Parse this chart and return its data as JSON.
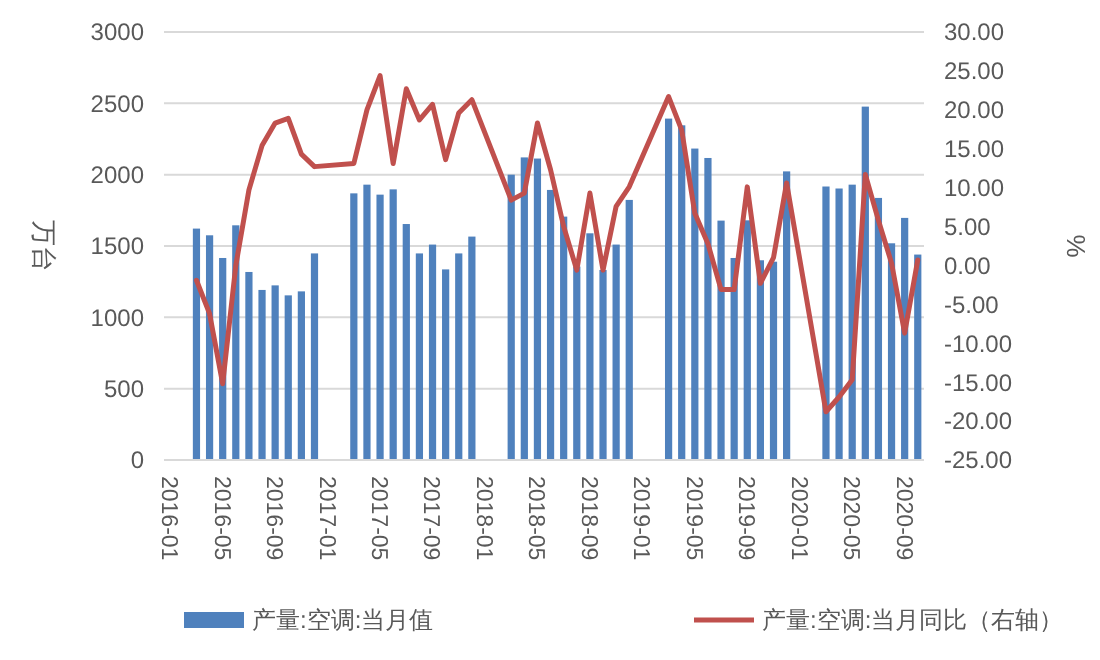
{
  "chart_data": {
    "type": "bar",
    "ylabel": "万台",
    "y2label": "%",
    "categories": [
      "2016-01",
      null,
      null,
      null,
      "2016-05",
      null,
      null,
      null,
      "2016-09",
      null,
      null,
      null,
      "2017-01",
      null,
      null,
      null,
      "2017-05",
      null,
      null,
      null,
      "2017-09",
      null,
      null,
      null,
      "2018-01",
      null,
      null,
      null,
      "2018-05",
      null,
      null,
      null,
      "2018-09",
      null,
      null,
      null,
      "2019-01",
      null,
      null,
      null,
      "2019-05",
      null,
      null,
      null,
      "2019-09",
      null,
      null,
      null,
      "2020-01",
      null,
      null,
      null,
      "2020-05",
      null,
      null,
      null,
      "2020-09",
      null
    ],
    "series": [
      {
        "name": "产量:空调:当月值",
        "color": "#4f81bd",
        "values": [
          null,
          null,
          1622,
          1575,
          1416,
          1645,
          1318,
          1192,
          1224,
          1154,
          1182,
          1448,
          null,
          null,
          1869,
          1930,
          1860,
          1897,
          1654,
          1448,
          1510,
          1336,
          1448,
          1566,
          null,
          null,
          2000,
          2121,
          2113,
          1893,
          1706,
          1356,
          1589,
          1332,
          1510,
          1823,
          null,
          null,
          2393,
          2346,
          2183,
          2117,
          1678,
          1416,
          1680,
          1400,
          1390,
          2023,
          null,
          null,
          1917,
          1903,
          1930,
          2477,
          1837,
          1519,
          1697,
          1440
        ]
      },
      {
        "name": "产量:空调:当月同比（右轴）",
        "type": "line",
        "axis": "y2",
        "color": "#c0504d",
        "values": [
          null,
          null,
          -1.9,
          -6.2,
          -15.2,
          0,
          9.7,
          15.4,
          18.3,
          18.9,
          14.3,
          12.7,
          null,
          null,
          13.1,
          20,
          24.4,
          13.1,
          22.7,
          18.7,
          20.7,
          13.6,
          19.6,
          21.3,
          null,
          null,
          8.4,
          9.3,
          18.3,
          12.3,
          5,
          -0.6,
          9.3,
          -0.6,
          7.6,
          10.1,
          null,
          null,
          21.7,
          17.4,
          6.7,
          2.8,
          -3.1,
          -3.1,
          10.1,
          -2.3,
          1,
          10.6,
          null,
          null,
          -18.8,
          -16.9,
          -14.7,
          11.7,
          5.8,
          0.3,
          -8.7,
          0.7
        ]
      }
    ],
    "ylim": [
      0,
      3000
    ],
    "yticks": [
      0,
      500,
      1000,
      1500,
      2000,
      2500,
      3000
    ],
    "y2lim": [
      -25,
      30
    ],
    "y2ticks": [
      {
        "value": -25,
        "label": "-25.00"
      },
      {
        "value": -20,
        "label": "-20.00"
      },
      {
        "value": -15,
        "label": "-15.00"
      },
      {
        "value": -10,
        "label": "-10.00"
      },
      {
        "value": -5,
        "label": "-5.00"
      },
      {
        "value": 0,
        "label": "0.00"
      },
      {
        "value": 5,
        "label": "5.00"
      },
      {
        "value": 10,
        "label": "10.00"
      },
      {
        "value": 15,
        "label": "15.00"
      },
      {
        "value": 20,
        "label": "20.00"
      },
      {
        "value": 25,
        "label": "25.00"
      },
      {
        "value": 30,
        "label": "30.00"
      }
    ],
    "grid": "y",
    "legend": "bottom"
  }
}
